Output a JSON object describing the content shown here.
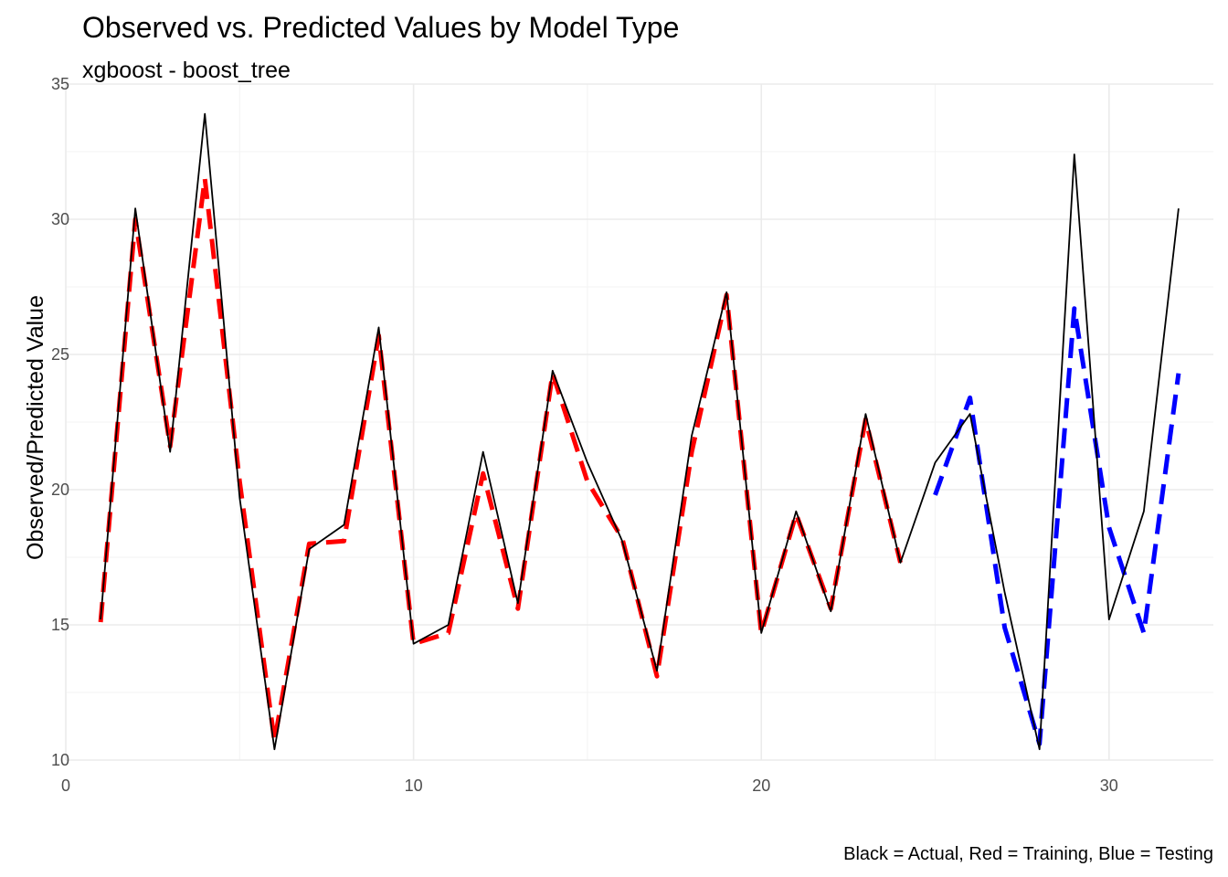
{
  "chart_data": {
    "type": "line",
    "title": "Observed vs. Predicted Values by Model Type",
    "subtitle": "xgboost - boost_tree",
    "xlabel": "",
    "ylabel": "Observed/Predicted Value",
    "caption": "Black = Actual, Red = Training, Blue = Testing",
    "xlim": [
      0,
      33
    ],
    "ylim": [
      10,
      35
    ],
    "x_ticks": [
      0,
      10,
      20,
      30
    ],
    "y_ticks": [
      10,
      15,
      20,
      25,
      30,
      35
    ],
    "grid": true,
    "legend": "none",
    "series": [
      {
        "color": "#000000",
        "dash": "solid",
        "x": [
          1,
          2,
          3,
          4,
          5,
          6,
          7,
          8,
          9,
          10,
          11,
          12,
          13,
          14,
          15,
          16,
          17,
          18,
          19,
          20,
          21,
          22,
          23,
          24,
          25,
          26,
          27,
          28,
          29,
          30,
          31,
          32
        ],
        "values": [
          15.2,
          30.4,
          21.4,
          33.9,
          19.7,
          10.4,
          17.8,
          18.7,
          26.0,
          14.3,
          15.0,
          21.4,
          15.8,
          24.4,
          21.0,
          18.1,
          13.3,
          22.0,
          27.3,
          14.7,
          19.2,
          15.5,
          22.8,
          17.3,
          21.0,
          22.8,
          16.2,
          10.4,
          32.4,
          15.2,
          19.2,
          30.4
        ]
      },
      {
        "color": "#ff0000",
        "dash": "dashed",
        "x": [
          1,
          2,
          3,
          4,
          5,
          6,
          7,
          8,
          9,
          10,
          11,
          12,
          13,
          14,
          15,
          16,
          17,
          18,
          19,
          20,
          21,
          22,
          23,
          24
        ],
        "values": [
          15.1,
          30.0,
          21.6,
          31.5,
          20.3,
          10.7,
          18.0,
          18.1,
          25.7,
          14.3,
          14.7,
          20.6,
          15.6,
          24.3,
          20.3,
          18.2,
          13.1,
          21.4,
          27.2,
          14.7,
          19.1,
          15.6,
          22.6,
          17.3
        ]
      },
      {
        "color": "#0000ff",
        "dash": "dashed",
        "x": [
          25,
          26,
          27,
          28,
          29,
          30,
          31,
          32
        ],
        "values": [
          19.8,
          23.4,
          14.9,
          10.6,
          26.7,
          18.6,
          14.7,
          24.3
        ]
      }
    ]
  }
}
